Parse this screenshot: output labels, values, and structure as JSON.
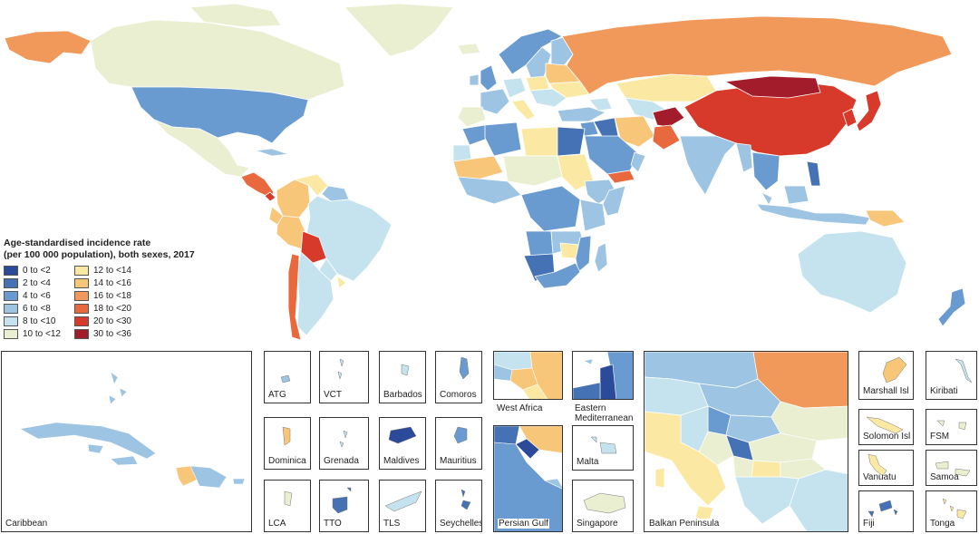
{
  "legend": {
    "title_line1": "Age-standardised incidence rate",
    "title_line2": "(per 100 000 population), both sexes, 2017",
    "items": [
      {
        "label": "0 to <2",
        "color": "#2c4a9a"
      },
      {
        "label": "2 to <4",
        "color": "#4472b4"
      },
      {
        "label": "4 to <6",
        "color": "#6a9bd0"
      },
      {
        "label": "6 to <8",
        "color": "#9dc5e3"
      },
      {
        "label": "8 to <10",
        "color": "#c5e3ee"
      },
      {
        "label": "10 to <12",
        "color": "#e9efd0"
      },
      {
        "label": "12 to <14",
        "color": "#fbe9a3"
      },
      {
        "label": "14 to <16",
        "color": "#f8c678"
      },
      {
        "label": "16 to <18",
        "color": "#f1995a"
      },
      {
        "label": "18 to <20",
        "color": "#e8693e"
      },
      {
        "label": "20 to <30",
        "color": "#d7392b"
      },
      {
        "label": "30 to <36",
        "color": "#a31c2c"
      }
    ]
  },
  "insets": {
    "caribbean": "Caribbean",
    "atg": "ATG",
    "vct": "VCT",
    "barbados": "Barbados",
    "comoros": "Comoros",
    "dominica": "Dominica",
    "grenada": "Grenada",
    "maldives": "Maldives",
    "mauritius": "Mauritius",
    "lca": "LCA",
    "tto": "TTO",
    "tls": "TLS",
    "seychelles": "Seychelles",
    "west_africa": "West Africa",
    "east_med_line1": "Eastern",
    "east_med_line2": "Mediterranean",
    "persian_gulf": "Persian Gulf",
    "malta": "Malta",
    "singapore": "Singapore",
    "balkan": "Balkan Peninsula",
    "marshall": "Marshall Isl",
    "kiribati": "Kiribati",
    "solomon": "Solomon Isl",
    "fsm": "FSM",
    "vanuatu": "Vanuatu",
    "samoa": "Samoa",
    "fiji": "Fiji",
    "tonga": "Tonga"
  }
}
